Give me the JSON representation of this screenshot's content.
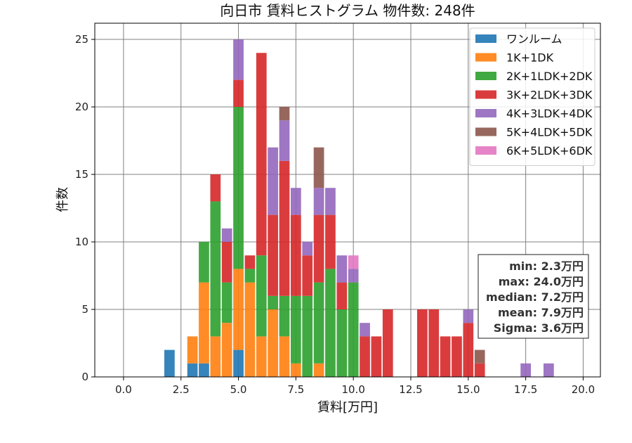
{
  "chart_data": {
    "type": "bar",
    "title": "向日市 賃料ヒストグラム 物件数: 248件",
    "xlabel": "賃料[万円]",
    "ylabel": "件数",
    "xlim": [
      -1.25,
      20.75
    ],
    "ylim": [
      0,
      26.2
    ],
    "xticks": [
      0.0,
      2.5,
      5.0,
      7.5,
      10.0,
      12.5,
      15.0,
      17.5,
      20.0
    ],
    "yticks": [
      0,
      5,
      10,
      15,
      20,
      25
    ],
    "grid": true,
    "stacked": true,
    "bin_width": 0.5,
    "legend_position": "top-right",
    "bins": [
      2.0,
      3.0,
      3.5,
      4.0,
      4.5,
      5.0,
      5.5,
      6.0,
      6.5,
      7.0,
      7.5,
      8.0,
      8.5,
      9.0,
      9.5,
      10.0,
      10.5,
      11.0,
      11.5,
      13.0,
      13.5,
      14.0,
      14.5,
      15.0,
      15.5,
      17.5,
      18.5
    ],
    "series": [
      {
        "name": "ワンルーム",
        "color": "#1f77b4",
        "values": [
          2,
          1,
          1,
          0,
          0,
          2,
          0,
          0,
          0,
          0,
          0,
          0,
          0,
          0,
          0,
          0,
          0,
          0,
          0,
          0,
          0,
          0,
          0,
          0,
          0,
          0,
          0
        ]
      },
      {
        "name": "1K+1DK",
        "color": "#ff7f0e",
        "values": [
          0,
          2,
          6,
          3,
          4,
          6,
          7,
          3,
          5,
          3,
          1,
          0,
          1,
          0,
          0,
          0,
          0,
          0,
          0,
          0,
          0,
          0,
          0,
          0,
          0,
          0,
          0
        ]
      },
      {
        "name": "2K+1LDK+2DK",
        "color": "#2ca02c",
        "values": [
          0,
          0,
          3,
          10,
          3,
          12,
          1,
          6,
          1,
          3,
          5,
          6,
          6,
          8,
          5,
          7,
          0,
          0,
          0,
          0,
          0,
          0,
          0,
          0,
          0,
          0,
          0
        ]
      },
      {
        "name": "3K+2LDK+3DK",
        "color": "#d62728",
        "values": [
          0,
          0,
          0,
          2,
          3,
          2,
          1,
          15,
          6,
          10,
          6,
          3,
          5,
          4,
          2,
          0,
          3,
          3,
          5,
          5,
          5,
          3,
          3,
          4,
          1,
          0,
          0
        ]
      },
      {
        "name": "4K+3LDK+4DK",
        "color": "#9467bd",
        "values": [
          0,
          0,
          0,
          0,
          1,
          3,
          0,
          0,
          5,
          3,
          2,
          1,
          2,
          2,
          2,
          1,
          1,
          0,
          0,
          0,
          0,
          0,
          0,
          1,
          0,
          1,
          1
        ]
      },
      {
        "name": "5K+4LDK+5DK",
        "color": "#8c564b",
        "values": [
          0,
          0,
          0,
          0,
          0,
          0,
          0,
          0,
          0,
          1,
          0,
          0,
          3,
          0,
          0,
          0,
          0,
          0,
          0,
          0,
          0,
          0,
          0,
          0,
          1,
          0,
          0
        ]
      },
      {
        "name": "6K+5LDK+6DK",
        "color": "#e377c2",
        "values": [
          0,
          0,
          0,
          0,
          0,
          0,
          0,
          0,
          0,
          0,
          0,
          0,
          0,
          0,
          0,
          1,
          0,
          0,
          0,
          0,
          0,
          0,
          0,
          0,
          0,
          0,
          0
        ]
      }
    ],
    "stats": [
      "min: 2.3万円",
      "max: 24.0万円",
      "median: 7.2万円",
      "mean: 7.9万円",
      "Sigma: 3.6万円"
    ]
  }
}
